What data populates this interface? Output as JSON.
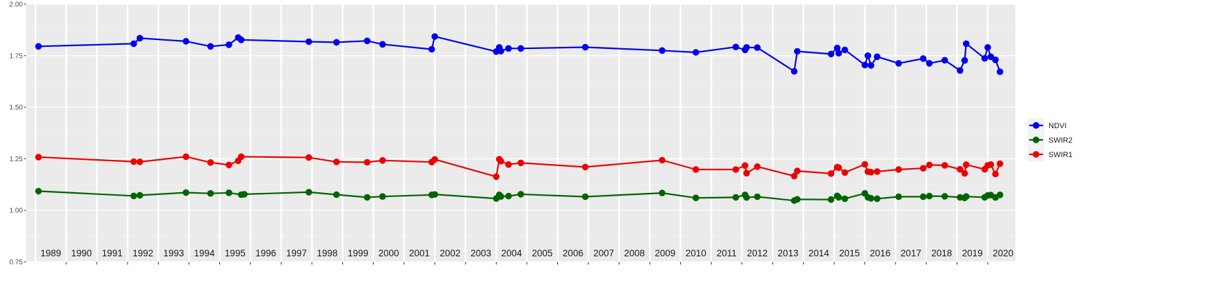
{
  "chart_data": {
    "type": "line",
    "title": "",
    "xlabel": "",
    "ylabel": "",
    "ylim": [
      0.75,
      2.0
    ],
    "y_ticks": [
      "0.75",
      "1.00",
      "1.25",
      "1.50",
      "1.75",
      "2.00"
    ],
    "x_range": [
      1988.7,
      2020.9
    ],
    "year_labels": [
      "1989",
      "1990",
      "1991",
      "1992",
      "1993",
      "1994",
      "1995",
      "1996",
      "1997",
      "1998",
      "1999",
      "2000",
      "2001",
      "2002",
      "2003",
      "2004",
      "2005",
      "2006",
      "2007",
      "2008",
      "2009",
      "2010",
      "2011",
      "2012",
      "2013",
      "2014",
      "2015",
      "2016",
      "2017",
      "2018",
      "2019",
      "2020"
    ],
    "grid": true,
    "legend_position": "right",
    "series": [
      {
        "name": "NDVI",
        "color": "#0000ee",
        "x": [
          1989.1,
          1992.2,
          1992.4,
          1993.9,
          1994.7,
          1995.3,
          1995.6,
          1995.7,
          1997.9,
          1998.8,
          1999.8,
          2000.3,
          2001.9,
          2002.0,
          2004.0,
          2004.1,
          2004.15,
          2004.4,
          2004.8,
          2006.9,
          2009.4,
          2010.5,
          2011.8,
          2012.1,
          2012.15,
          2012.5,
          2013.7,
          2013.8,
          2014.9,
          2015.1,
          2015.15,
          2015.35,
          2016.0,
          2016.1,
          2016.2,
          2016.4,
          2017.1,
          2017.9,
          2018.1,
          2018.6,
          2019.1,
          2019.25,
          2019.3,
          2019.9,
          2020.0,
          2020.1,
          2020.25,
          2020.4
        ],
        "y": [
          1.795,
          1.808,
          1.835,
          1.82,
          1.795,
          1.803,
          1.838,
          1.827,
          1.818,
          1.815,
          1.822,
          1.805,
          1.781,
          1.843,
          1.77,
          1.79,
          1.772,
          1.785,
          1.785,
          1.791,
          1.775,
          1.766,
          1.792,
          1.778,
          1.79,
          1.789,
          1.674,
          1.771,
          1.758,
          1.787,
          1.762,
          1.778,
          1.705,
          1.75,
          1.703,
          1.745,
          1.713,
          1.736,
          1.713,
          1.728,
          1.678,
          1.727,
          1.808,
          1.737,
          1.79,
          1.745,
          1.73,
          1.672
        ]
      },
      {
        "name": "SWIR2",
        "color": "#006400",
        "x": [
          1989.1,
          1992.2,
          1992.4,
          1993.9,
          1994.7,
          1995.3,
          1995.7,
          1995.8,
          1997.9,
          1998.8,
          1999.8,
          2000.3,
          2001.9,
          2002.0,
          2004.0,
          2004.1,
          2004.15,
          2004.4,
          2004.8,
          2006.9,
          2009.4,
          2010.5,
          2011.8,
          2012.1,
          2012.15,
          2012.5,
          2013.7,
          2013.8,
          2014.9,
          2015.1,
          2015.15,
          2015.35,
          2016.0,
          2016.1,
          2016.2,
          2016.4,
          2017.1,
          2017.9,
          2018.1,
          2018.6,
          2019.1,
          2019.25,
          2019.3,
          2019.9,
          2020.0,
          2020.1,
          2020.25,
          2020.4
        ],
        "y": [
          1.093,
          1.07,
          1.073,
          1.086,
          1.082,
          1.085,
          1.076,
          1.078,
          1.088,
          1.076,
          1.063,
          1.067,
          1.075,
          1.077,
          1.057,
          1.075,
          1.067,
          1.069,
          1.078,
          1.066,
          1.084,
          1.06,
          1.063,
          1.075,
          1.062,
          1.066,
          1.047,
          1.053,
          1.052,
          1.07,
          1.063,
          1.056,
          1.082,
          1.063,
          1.058,
          1.056,
          1.066,
          1.066,
          1.069,
          1.068,
          1.063,
          1.06,
          1.067,
          1.063,
          1.072,
          1.074,
          1.062,
          1.075
        ]
      },
      {
        "name": "SWIR1",
        "color": "#ee0000",
        "x": [
          1989.1,
          1992.2,
          1992.4,
          1993.9,
          1994.7,
          1995.3,
          1995.6,
          1995.7,
          1997.9,
          1998.8,
          1999.8,
          2000.3,
          2001.9,
          2002.0,
          2004.0,
          2004.1,
          2004.15,
          2004.4,
          2004.8,
          2006.9,
          2009.4,
          2010.5,
          2011.8,
          2012.1,
          2012.15,
          2012.5,
          2013.7,
          2013.8,
          2014.9,
          2015.1,
          2015.15,
          2015.35,
          2016.0,
          2016.1,
          2016.2,
          2016.4,
          2017.1,
          2017.9,
          2018.1,
          2018.6,
          2019.1,
          2019.25,
          2019.3,
          2019.9,
          2020.0,
          2020.1,
          2020.25,
          2020.4
        ],
        "y": [
          1.258,
          1.236,
          1.235,
          1.26,
          1.232,
          1.22,
          1.24,
          1.26,
          1.256,
          1.235,
          1.233,
          1.242,
          1.234,
          1.247,
          1.163,
          1.248,
          1.238,
          1.222,
          1.23,
          1.21,
          1.243,
          1.198,
          1.198,
          1.217,
          1.18,
          1.212,
          1.166,
          1.191,
          1.178,
          1.209,
          1.207,
          1.183,
          1.223,
          1.187,
          1.185,
          1.188,
          1.198,
          1.204,
          1.22,
          1.218,
          1.199,
          1.179,
          1.221,
          1.199,
          1.218,
          1.222,
          1.176,
          1.226
        ]
      }
    ],
    "legend_order": [
      "NDVI",
      "SWIR2",
      "SWIR1"
    ]
  }
}
